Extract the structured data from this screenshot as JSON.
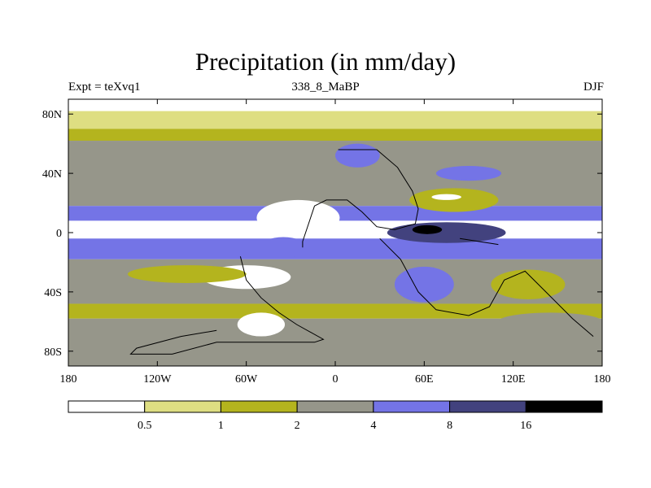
{
  "chart_data": {
    "type": "heatmap",
    "title": "Precipitation (in mm/day)",
    "subtitle_left": "Expt = teXvq1",
    "subtitle_center": "338_8_MaBP",
    "subtitle_right": "DJF",
    "x_range": [
      -180,
      180
    ],
    "y_range": [
      -90,
      90
    ],
    "x_ticks": [
      {
        "value": -180,
        "label": "180"
      },
      {
        "value": -120,
        "label": "120W"
      },
      {
        "value": -60,
        "label": "60W"
      },
      {
        "value": 0,
        "label": "0"
      },
      {
        "value": 60,
        "label": "60E"
      },
      {
        "value": 120,
        "label": "120E"
      },
      {
        "value": 180,
        "label": "180"
      }
    ],
    "y_ticks": [
      {
        "value": 80,
        "label": "80N"
      },
      {
        "value": 40,
        "label": "40N"
      },
      {
        "value": 0,
        "label": "0"
      },
      {
        "value": -40,
        "label": "40S"
      },
      {
        "value": -80,
        "label": "80S"
      }
    ],
    "colorbar": {
      "levels": [
        "0.5",
        "1",
        "2",
        "4",
        "8",
        "16"
      ],
      "colors": [
        "#ffffff",
        "#dede82",
        "#b4b41e",
        "#96968a",
        "#7474e6",
        "#42427e",
        "#000000"
      ]
    },
    "bands": [
      {
        "lat_from": 90,
        "lat_to": 82,
        "class": 0
      },
      {
        "lat_from": 82,
        "lat_to": 70,
        "class": 1
      },
      {
        "lat_from": 70,
        "lat_to": 62,
        "class": 2
      },
      {
        "lat_from": 62,
        "lat_to": 18,
        "class": 3
      },
      {
        "lat_from": 18,
        "lat_to": 8,
        "class": 4
      },
      {
        "lat_from": 8,
        "lat_to": -4,
        "class": 0
      },
      {
        "lat_from": -4,
        "lat_to": -18,
        "class": 4
      },
      {
        "lat_from": -18,
        "lat_to": -48,
        "class": 3
      },
      {
        "lat_from": -48,
        "lat_to": -58,
        "class": 2
      },
      {
        "lat_from": -58,
        "lat_to": -90,
        "class": 3
      }
    ],
    "regions": [
      {
        "lon": -25,
        "lat": 10,
        "rx": 28,
        "ry": 12,
        "class": 0
      },
      {
        "lon": -60,
        "lat": -30,
        "rx": 30,
        "ry": 8,
        "class": 0
      },
      {
        "lon": -50,
        "lat": -62,
        "rx": 16,
        "ry": 8,
        "class": 0
      },
      {
        "lon": -100,
        "lat": -28,
        "rx": 40,
        "ry": 6,
        "class": 2
      },
      {
        "lon": -35,
        "lat": -10,
        "rx": 16,
        "ry": 7,
        "class": 4
      },
      {
        "lon": 75,
        "lat": 0,
        "rx": 40,
        "ry": 7,
        "class": 5
      },
      {
        "lon": 62,
        "lat": 2,
        "rx": 10,
        "ry": 3,
        "class": 6
      },
      {
        "lon": 80,
        "lat": 22,
        "rx": 30,
        "ry": 8,
        "class": 2
      },
      {
        "lon": 75,
        "lat": 24,
        "rx": 10,
        "ry": 2,
        "class": 0
      },
      {
        "lon": 90,
        "lat": 40,
        "rx": 22,
        "ry": 5,
        "class": 4
      },
      {
        "lon": 15,
        "lat": 52,
        "rx": 15,
        "ry": 8,
        "class": 4
      },
      {
        "lon": 60,
        "lat": -35,
        "rx": 20,
        "ry": 12,
        "class": 4
      },
      {
        "lon": 130,
        "lat": -35,
        "rx": 25,
        "ry": 10,
        "class": 2
      },
      {
        "lon": 145,
        "lat": -60,
        "rx": 35,
        "ry": 6,
        "class": 3
      }
    ],
    "land": [
      [
        [
          2,
          56
        ],
        [
          28,
          56
        ],
        [
          42,
          44
        ],
        [
          52,
          28
        ],
        [
          56,
          16
        ],
        [
          54,
          6
        ],
        [
          40,
          2
        ],
        [
          28,
          4
        ],
        [
          18,
          14
        ],
        [
          8,
          22
        ],
        [
          -6,
          22
        ],
        [
          -14,
          18
        ],
        [
          -18,
          6
        ],
        [
          -22,
          -6
        ],
        [
          -22,
          -10
        ]
      ],
      [
        [
          -64,
          -16
        ],
        [
          -60,
          -32
        ],
        [
          -50,
          -44
        ],
        [
          -38,
          -54
        ],
        [
          -26,
          -62
        ],
        [
          -8,
          -72
        ],
        [
          -14,
          -74
        ],
        [
          -52,
          -74
        ],
        [
          -80,
          -74
        ],
        [
          -110,
          -82
        ],
        [
          -138,
          -82
        ],
        [
          -134,
          -78
        ],
        [
          -104,
          -70
        ],
        [
          -80,
          -66
        ]
      ],
      [
        [
          30,
          -4
        ],
        [
          44,
          -18
        ],
        [
          56,
          -40
        ],
        [
          68,
          -52
        ],
        [
          90,
          -56
        ],
        [
          104,
          -50
        ],
        [
          114,
          -32
        ],
        [
          128,
          -26
        ],
        [
          142,
          -40
        ],
        [
          160,
          -58
        ],
        [
          174,
          -70
        ]
      ],
      [
        [
          84,
          -4
        ],
        [
          110,
          -8
        ]
      ]
    ]
  }
}
